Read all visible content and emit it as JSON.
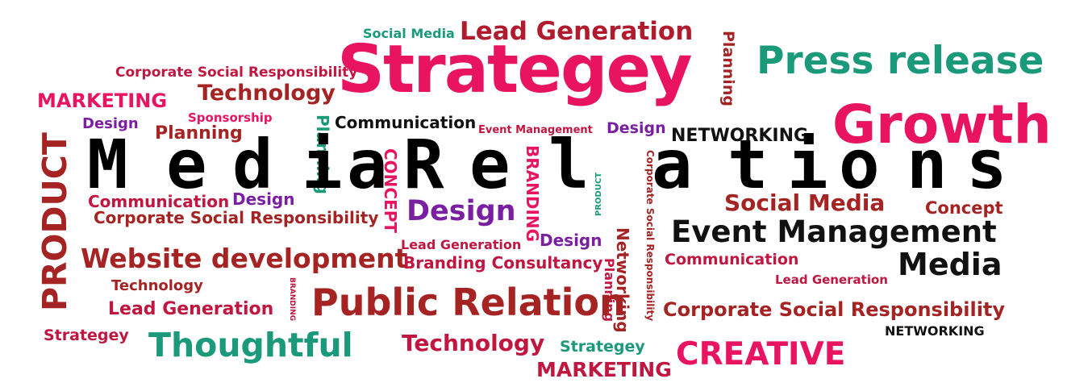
{
  "title": {
    "text": "Media Relations",
    "letters": [
      "M",
      "e",
      "d",
      "i",
      "a",
      "R",
      "e",
      "l",
      "a",
      "t",
      "i",
      "o",
      "n",
      "s"
    ]
  },
  "words": [
    {
      "id": "social-media-top",
      "text": "Social Media",
      "color": "#1a9a7a"
    },
    {
      "id": "lead-generation-top",
      "text": "Lead Generation",
      "color": "#b01c2e"
    },
    {
      "id": "planning-vertical-top",
      "text": "Planning",
      "color": "#a52323"
    },
    {
      "id": "press-release",
      "text": "Press release",
      "color": "#1a9a7a"
    },
    {
      "id": "corporate-social-responsibility-1",
      "text": "Corporate Social Responsibility",
      "color": "#c0163f"
    },
    {
      "id": "strategey-main",
      "text": "Strategey",
      "color": "#e8145f"
    },
    {
      "id": "marketing-left",
      "text": "MARKETING",
      "color": "#e8145f"
    },
    {
      "id": "technology-top",
      "text": "Technology",
      "color": "#a52323"
    },
    {
      "id": "sponsorship",
      "text": "Sponsorship",
      "color": "#e8145f"
    },
    {
      "id": "design-1",
      "text": "Design",
      "color": "#7b1fa2"
    },
    {
      "id": "planning-1",
      "text": "Planning",
      "color": "#a52323"
    },
    {
      "id": "planning-vertical-2",
      "text": "Planning",
      "color": "#1a9a7a"
    },
    {
      "id": "communication-top",
      "text": "Communication",
      "color": "#111111"
    },
    {
      "id": "event-management-small",
      "text": "Event Management",
      "color": "#c0163f"
    },
    {
      "id": "design-2",
      "text": "Design",
      "color": "#7b1fa2"
    },
    {
      "id": "networking-top",
      "text": "NETWORKING",
      "color": "#111111"
    },
    {
      "id": "growth",
      "text": "Growth",
      "color": "#e8145f"
    },
    {
      "id": "product-vertical",
      "text": "PRODUCT",
      "color": "#a52323"
    },
    {
      "id": "concept-vertical",
      "text": "CONCEPT",
      "color": "#e8145f"
    },
    {
      "id": "branding-vertical",
      "text": "BRANDING",
      "color": "#e8145f"
    },
    {
      "id": "product-vertical-small",
      "text": "PRODUCT",
      "color": "#1a9a7a"
    },
    {
      "id": "corporate-vertical",
      "text": "Corporate Social Responsibility",
      "color": "#a52323"
    },
    {
      "id": "communication-2",
      "text": "Communication",
      "color": "#c0163f"
    },
    {
      "id": "design-3",
      "text": "Design",
      "color": "#7b1fa2"
    },
    {
      "id": "corporate-social-responsibility-2",
      "text": "Corporate Social Responsibility",
      "color": "#a52323"
    },
    {
      "id": "design-4",
      "text": "Design",
      "color": "#7b1fa2"
    },
    {
      "id": "social-media-right",
      "text": "Social Media",
      "color": "#a52323"
    },
    {
      "id": "concept-right",
      "text": "Concept",
      "color": "#a52323"
    },
    {
      "id": "event-management-big",
      "text": "Event Management",
      "color": "#111111"
    },
    {
      "id": "lead-generation-mid",
      "text": "Lead Generation",
      "color": "#c0163f"
    },
    {
      "id": "design-5",
      "text": "Design",
      "color": "#7b1fa2"
    },
    {
      "id": "website-development",
      "text": "Website development",
      "color": "#a52323"
    },
    {
      "id": "branding-consultancy",
      "text": "Branding Consultancy",
      "color": "#c0163f"
    },
    {
      "id": "communication-right",
      "text": "Communication",
      "color": "#c0163f"
    },
    {
      "id": "media-right",
      "text": "Media",
      "color": "#111111"
    },
    {
      "id": "networking-vertical",
      "text": "Networking",
      "color": "#a52323"
    },
    {
      "id": "planning-vertical-3",
      "text": "Planning",
      "color": "#c0163f"
    },
    {
      "id": "technology-2",
      "text": "Technology",
      "color": "#a52323"
    },
    {
      "id": "branding-vertical-small",
      "text": "BRANDING",
      "color": "#c0163f"
    },
    {
      "id": "lead-generation-right",
      "text": "Lead Generation",
      "color": "#c0163f"
    },
    {
      "id": "lead-generation-left",
      "text": "Lead Generation",
      "color": "#c0163f"
    },
    {
      "id": "public-relation",
      "text": "Public Relation",
      "color": "#a52323"
    },
    {
      "id": "corporate-social-responsibility-3",
      "text": "Corporate Social Responsibility",
      "color": "#a52323"
    },
    {
      "id": "strategey-small",
      "text": "Strategey",
      "color": "#c0163f"
    },
    {
      "id": "networking-bottom",
      "text": "NETWORKING",
      "color": "#111111"
    },
    {
      "id": "thoughtful",
      "text": "Thoughtful",
      "color": "#1a9a7a"
    },
    {
      "id": "technology-bottom",
      "text": "Technology",
      "color": "#c0163f"
    },
    {
      "id": "strategey-bottom",
      "text": "Strategey",
      "color": "#1a9a7a"
    },
    {
      "id": "creative",
      "text": "CREATIVE",
      "color": "#e8145f"
    },
    {
      "id": "marketing-bottom",
      "text": "MARKETING",
      "color": "#c0163f"
    }
  ]
}
